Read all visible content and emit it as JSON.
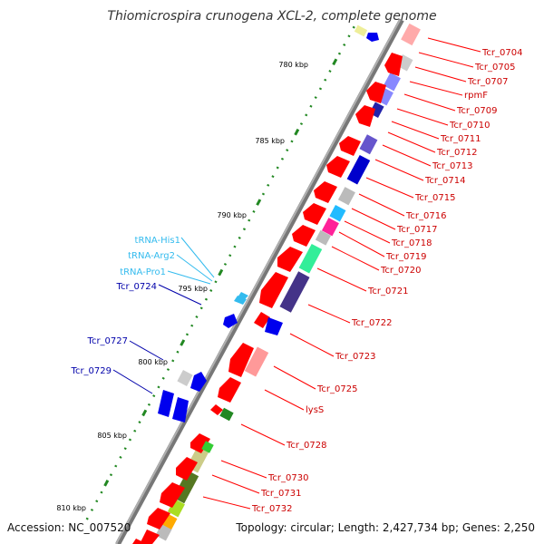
{
  "title": "Thiomicrospira crunogena XCL-2, complete genome",
  "accession": "Accession: NC_007520",
  "topology": "Topology: circular; Length: 2,427,734 bp; Genes: 2,250",
  "ticks": [
    "780 kbp",
    "785 kbp",
    "790 kbp",
    "795 kbp",
    "800 kbp",
    "805 kbp",
    "810 kbp"
  ],
  "right_labels": [
    "Tcr_0704",
    "Tcr_0705",
    "Tcr_0707",
    "rpmF",
    "Tcr_0709",
    "Tcr_0710",
    "Tcr_0711",
    "Tcr_0712",
    "Tcr_0713",
    "Tcr_0714",
    "Tcr_0715",
    "Tcr_0716",
    "Tcr_0717",
    "Tcr_0718",
    "Tcr_0719",
    "Tcr_0720",
    "Tcr_0721",
    "Tcr_0722",
    "Tcr_0723",
    "Tcr_0725",
    "lysS",
    "Tcr_0728",
    "Tcr_0730",
    "Tcr_0731",
    "Tcr_0732"
  ],
  "left_labels": [
    "tRNA-His1",
    "tRNA-Arg2",
    "tRNA-Pro1",
    "Tcr_0724",
    "Tcr_0727",
    "Tcr_0729"
  ],
  "colors": {
    "forward_gene": "#ff0000",
    "reverse_gene": "#0000dd",
    "trna": "#33bbee",
    "right_label": "#cc0000",
    "trna_label": "#33bbee",
    "left_label": "#0000aa",
    "backbone": "#777777",
    "tick_dot": "#228822"
  }
}
